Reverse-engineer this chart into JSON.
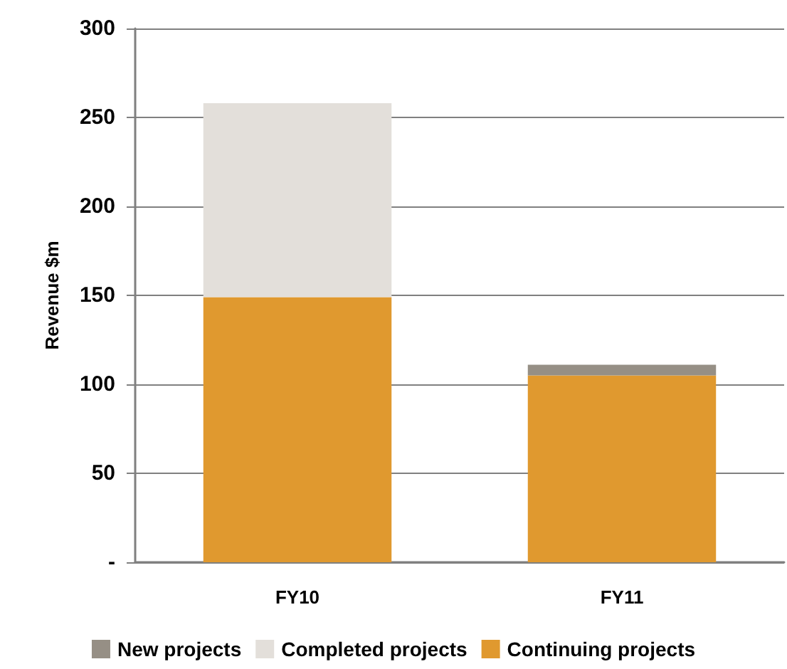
{
  "chart_data": {
    "type": "bar",
    "ylabel": "Revenue $m",
    "categories": [
      "FY10",
      "FY11"
    ],
    "stacked": true,
    "series": [
      {
        "name": "Continuing projects",
        "color": "#e0992f",
        "values": [
          149,
          105
        ]
      },
      {
        "name": "Completed projects",
        "color": "#e3dfda",
        "values": [
          109,
          0
        ]
      },
      {
        "name": "New projects",
        "color": "#968f85",
        "values": [
          0,
          6
        ]
      }
    ],
    "ylim": [
      0,
      300
    ],
    "yticks": [
      {
        "value": 0,
        "label": "-"
      },
      50,
      100,
      150,
      200,
      250,
      300
    ],
    "grid": "y",
    "legend": "bottom"
  }
}
